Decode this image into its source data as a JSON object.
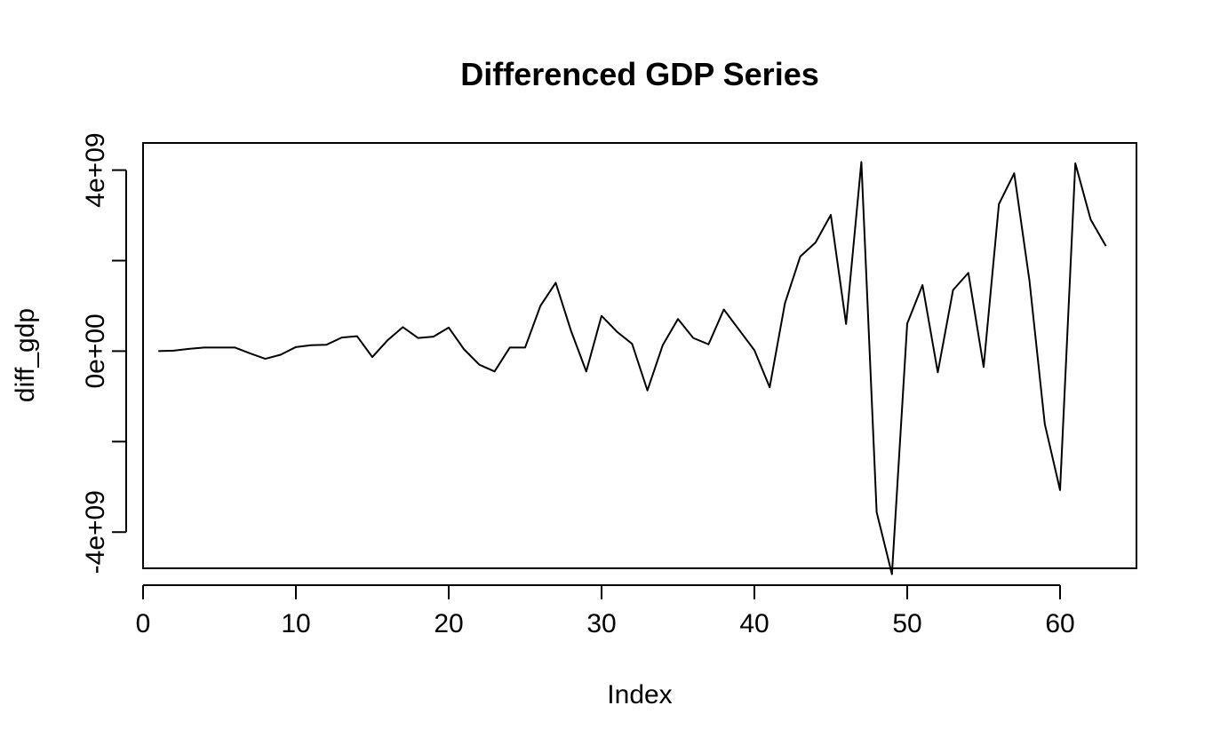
{
  "chart_data": {
    "type": "line",
    "title": "Differenced GDP Series",
    "xlabel": "Index",
    "ylabel": "diff_gdp",
    "xlim": [
      0,
      65
    ],
    "ylim": [
      -4800000000.0,
      4600000000.0
    ],
    "x_ticks": [
      0,
      10,
      20,
      30,
      40,
      50,
      60
    ],
    "x_tick_labels": [
      "0",
      "10",
      "20",
      "30",
      "40",
      "50",
      "60"
    ],
    "y_ticks": [
      -4000000000.0,
      -2000000000.0,
      0,
      2000000000.0,
      4000000000.0
    ],
    "y_tick_labels": [
      "-4e+09",
      "",
      "0e+00",
      "",
      "4e+09"
    ],
    "grid": false,
    "line_color": "#000000",
    "series": [
      {
        "x": [
          1,
          2,
          3,
          4,
          5,
          6,
          7,
          8,
          9,
          10,
          11,
          12,
          13,
          14,
          15,
          16,
          17,
          18,
          19,
          20,
          21,
          22,
          23,
          24,
          25,
          26,
          27,
          28,
          29,
          30,
          31,
          32,
          33,
          34,
          35,
          36,
          37,
          38,
          39,
          40,
          41,
          42,
          43,
          44,
          45,
          46,
          47,
          48,
          49,
          50,
          51,
          52,
          53,
          54,
          55,
          56,
          57,
          58,
          59,
          60,
          61,
          62,
          63
        ],
        "values": [
          0.0,
          10000000.0,
          50000000.0,
          80000000.0,
          80000000.0,
          80000000.0,
          -50000000.0,
          -170000000.0,
          -80000000.0,
          90000000.0,
          130000000.0,
          140000000.0,
          300000000.0,
          330000000.0,
          -130000000.0,
          240000000.0,
          530000000.0,
          290000000.0,
          320000000.0,
          520000000.0,
          40000000.0,
          -300000000.0,
          -450000000.0,
          80000000.0,
          80000000.0,
          1000000000.0,
          1510000000.0,
          450000000.0,
          -450000000.0,
          780000000.0,
          430000000.0,
          160000000.0,
          -870000000.0,
          130000000.0,
          710000000.0,
          290000000.0,
          150000000.0,
          920000000.0,
          470000000.0,
          20000000.0,
          -800000000.0,
          1060000000.0,
          2090000000.0,
          2400000000.0,
          3010000000.0,
          600000000.0,
          4180000000.0,
          -3560000000.0,
          -4930000000.0,
          610000000.0,
          1460000000.0,
          -470000000.0,
          1350000000.0,
          1730000000.0,
          -350000000.0,
          3250000000.0,
          3930000000.0,
          1550000000.0,
          -1610000000.0,
          -3070000000.0,
          4150000000.0,
          2910000000.0,
          2320000000.0
        ]
      }
    ]
  }
}
